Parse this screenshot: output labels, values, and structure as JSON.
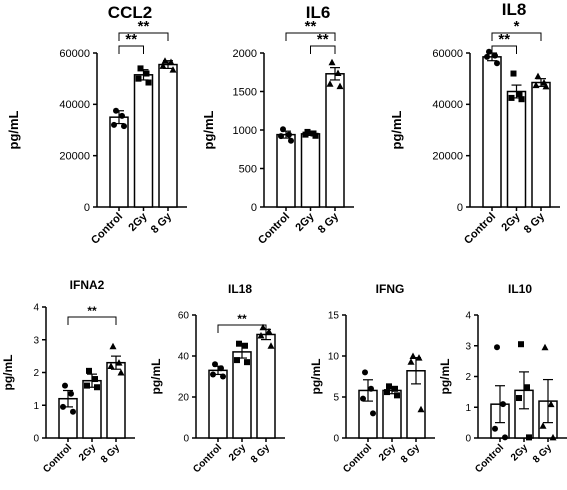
{
  "chart_data": [
    {
      "type": "bar",
      "title": "CCL2",
      "ylabel": "pg/mL",
      "categories": [
        "Control",
        "2Gy",
        "8 Gy"
      ],
      "values": [
        35000,
        51500,
        55500
      ],
      "errors": [
        2500,
        2000,
        1500
      ],
      "points": [
        [
          37500,
          35500,
          32000,
          31500
        ],
        [
          54000,
          52000,
          50000,
          48500
        ],
        [
          57000,
          56500,
          55000,
          53500
        ]
      ],
      "markers": [
        "circle",
        "square",
        "triangle"
      ],
      "ylim": [
        0,
        60000
      ],
      "yticks": [
        0,
        20000,
        40000,
        60000
      ],
      "significance": [
        {
          "from": 0,
          "to": 1,
          "label": "**"
        },
        {
          "from": 0,
          "to": 2,
          "label": "**"
        }
      ]
    },
    {
      "type": "bar",
      "title": "IL6",
      "ylabel": "pg/mL",
      "categories": [
        "Control",
        "2Gy",
        "8 Gy"
      ],
      "values": [
        940,
        950,
        1730
      ],
      "errors": [
        45,
        20,
        80
      ],
      "points": [
        [
          1010,
          940,
          920,
          860
        ],
        [
          975,
          955,
          940,
          925
        ],
        [
          1880,
          1740,
          1600,
          1570
        ]
      ],
      "markers": [
        "circle",
        "square",
        "triangle"
      ],
      "ylim": [
        0,
        2000
      ],
      "yticks": [
        0,
        500,
        1000,
        1500,
        2000
      ],
      "significance": [
        {
          "from": 1,
          "to": 2,
          "label": "**"
        },
        {
          "from": 0,
          "to": 2,
          "label": "**"
        }
      ]
    },
    {
      "type": "bar",
      "title": "IL8",
      "ylabel": "pg/mL",
      "categories": [
        "Control",
        "2Gy",
        "8 Gy"
      ],
      "values": [
        58500,
        45000,
        48500
      ],
      "errors": [
        1500,
        2500,
        1500
      ],
      "points": [
        [
          60500,
          59000,
          58500,
          56000
        ],
        [
          52000,
          44000,
          42500,
          42000
        ],
        [
          51000,
          48500,
          47500,
          47000
        ]
      ],
      "markers": [
        "circle",
        "square",
        "triangle"
      ],
      "ylim": [
        0,
        60000
      ],
      "yticks": [
        0,
        20000,
        40000,
        60000
      ],
      "significance": [
        {
          "from": 0,
          "to": 1,
          "label": "**"
        },
        {
          "from": 0,
          "to": 2,
          "label": "*"
        }
      ]
    },
    {
      "type": "bar",
      "title": "IFNA2",
      "ylabel": "pg/mL",
      "categories": [
        "Control",
        "2Gy",
        "8 Gy"
      ],
      "values": [
        1.2,
        1.75,
        2.3
      ],
      "errors": [
        0.25,
        0.2,
        0.2
      ],
      "points": [
        [
          1.6,
          1.35,
          0.95,
          0.8
        ],
        [
          2.05,
          1.8,
          1.6,
          1.55
        ],
        [
          2.8,
          2.3,
          2.2,
          2.0
        ]
      ],
      "markers": [
        "circle",
        "square",
        "triangle"
      ],
      "ylim": [
        0,
        4
      ],
      "yticks": [
        0,
        1,
        2,
        3,
        4
      ],
      "significance": [
        {
          "from": 0,
          "to": 2,
          "label": "**"
        }
      ]
    },
    {
      "type": "bar",
      "title": "IL18",
      "ylabel": "pg/mL",
      "categories": [
        "Control",
        "2Gy",
        "8 Gy"
      ],
      "values": [
        33,
        42,
        50.5
      ],
      "errors": [
        2,
        3,
        2.5
      ],
      "points": [
        [
          36,
          34,
          31,
          30
        ],
        [
          46,
          45,
          38,
          37
        ],
        [
          54,
          52,
          50,
          45
        ]
      ],
      "markers": [
        "circle",
        "square",
        "triangle"
      ],
      "ylim": [
        0,
        60
      ],
      "yticks": [
        0,
        20,
        40,
        60
      ],
      "significance": [
        {
          "from": 0,
          "to": 2,
          "label": "**"
        }
      ]
    },
    {
      "type": "bar",
      "title": "IFNG",
      "ylabel": "pg/mL",
      "categories": [
        "Control",
        "2Gy",
        "8 Gy"
      ],
      "values": [
        5.8,
        5.8,
        8.2
      ],
      "errors": [
        1.3,
        0.4,
        1.6
      ],
      "points": [
        [
          8.0,
          6.0,
          4.8,
          3.0
        ],
        [
          6.3,
          6.0,
          5.6,
          5.2
        ],
        [
          10.0,
          9.8,
          9.3,
          3.5
        ]
      ],
      "markers": [
        "circle",
        "square",
        "triangle"
      ],
      "ylim": [
        0,
        15
      ],
      "yticks": [
        0,
        5,
        10,
        15
      ],
      "significance": []
    },
    {
      "type": "bar",
      "title": "IL10",
      "ylabel": "pg/mL",
      "categories": [
        "Control",
        "2Gy",
        "8 Gy"
      ],
      "values": [
        1.1,
        1.55,
        1.2
      ],
      "errors": [
        0.6,
        0.6,
        0.7
      ],
      "points": [
        [
          2.95,
          1.1,
          0.3,
          0.02
        ],
        [
          3.05,
          1.65,
          1.3,
          0.02
        ],
        [
          2.95,
          1.1,
          0.4,
          0.02
        ]
      ],
      "markers": [
        "circle",
        "square",
        "triangle"
      ],
      "ylim": [
        0,
        4
      ],
      "yticks": [
        0,
        1,
        2,
        3,
        4
      ],
      "significance": []
    }
  ]
}
